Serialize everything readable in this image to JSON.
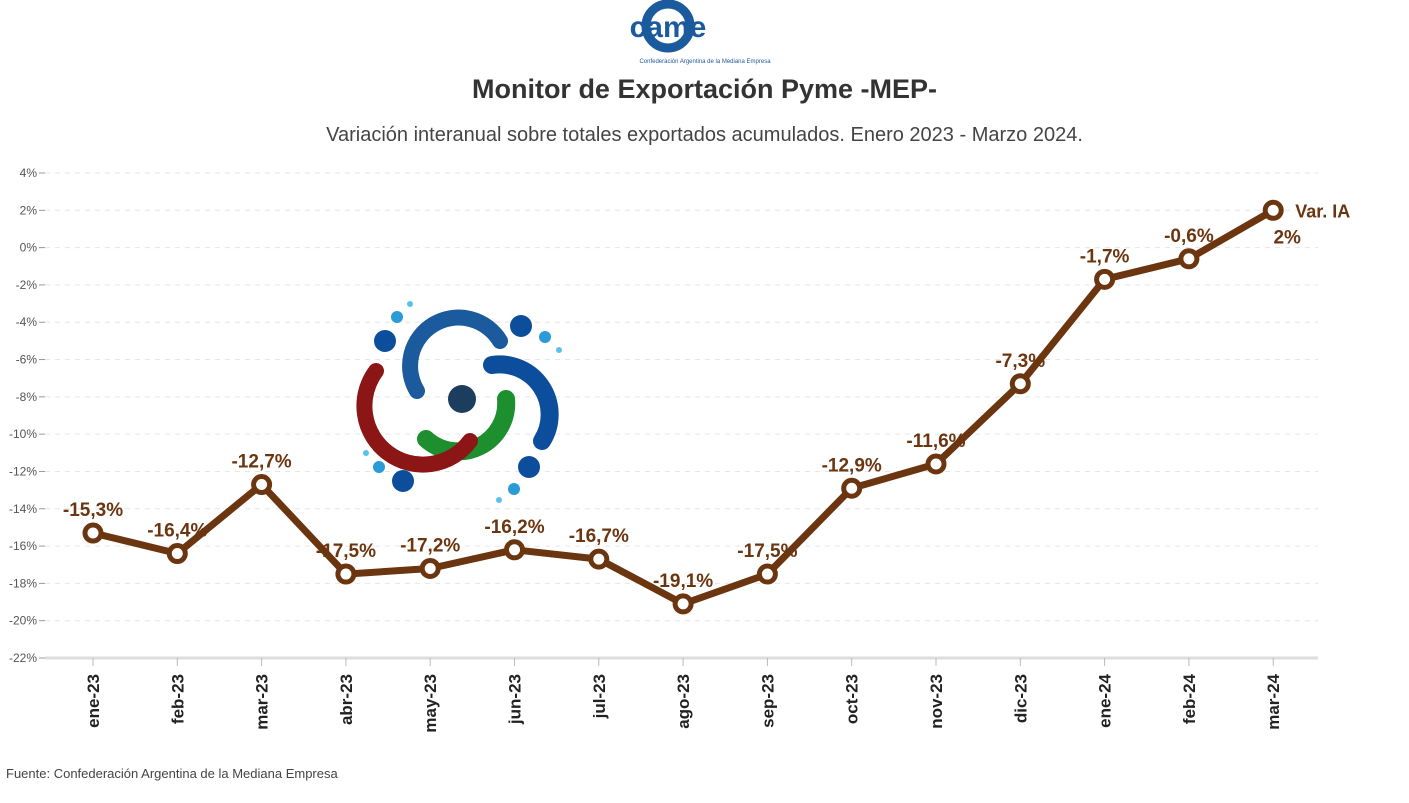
{
  "header": {
    "logo_text": "came",
    "logo_subtext": "Confederación Argentina de la Mediana Empresa",
    "title": "Monitor de Exportación Pyme -MEP-",
    "subtitle": "Variación interanual sobre totales exportados acumulados. Enero 2023 - Marzo 2024."
  },
  "footer": {
    "source": "Fuente: Confederación Argentina de la Mediana Empresa"
  },
  "colors": {
    "series": "#6b3510",
    "logo": "#1b5a9c"
  },
  "chart_data": {
    "type": "line",
    "title": "Monitor de Exportación Pyme -MEP-",
    "subtitle": "Variación interanual sobre totales exportados acumulados. Enero 2023 - Marzo 2024.",
    "xlabel": "",
    "ylabel": "",
    "categories": [
      "ene-23",
      "feb-23",
      "mar-23",
      "abr-23",
      "may-23",
      "jun-23",
      "jul-23",
      "ago-23",
      "sep-23",
      "oct-23",
      "nov-23",
      "dic-23",
      "ene-24",
      "feb-24",
      "mar-24"
    ],
    "series": [
      {
        "name": "Var. IA",
        "values": [
          -15.3,
          -16.4,
          -12.7,
          -17.5,
          -17.2,
          -16.2,
          -16.7,
          -19.1,
          -17.5,
          -12.9,
          -11.6,
          -7.3,
          -1.7,
          -0.6,
          2
        ],
        "labels": [
          "-15,3%",
          "-16,4%",
          "-12,7%",
          "-17,5%",
          "-17,2%",
          "-16,2%",
          "-16,7%",
          "-19,1%",
          "-17,5%",
          "-12,9%",
          "-11,6%",
          "-7,3%",
          "-1,7%",
          "-0,6%",
          "2%"
        ]
      }
    ],
    "ylim": [
      -22,
      4
    ],
    "yticks": [
      4,
      2,
      0,
      -2,
      -4,
      -6,
      -8,
      -10,
      -12,
      -14,
      -16,
      -18,
      -20,
      -22
    ],
    "ytick_labels": [
      "4%",
      "2%",
      "0%",
      "-2%",
      "-4%",
      "-6%",
      "-8%",
      "-10%",
      "-12%",
      "-14%",
      "-16%",
      "-18%",
      "-20%",
      "-22%"
    ],
    "grid": true,
    "legend": "none"
  }
}
